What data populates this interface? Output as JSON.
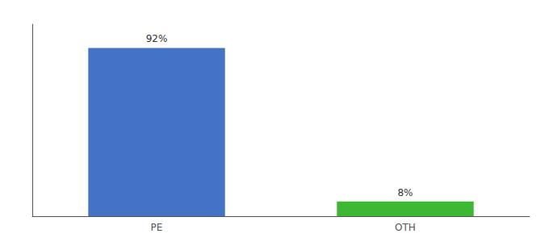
{
  "chart_data": {
    "type": "bar",
    "categories": [
      "PE",
      "OTH"
    ],
    "values": [
      92,
      8
    ],
    "value_labels": [
      "92%",
      "8%"
    ],
    "colors": [
      "#4472c4",
      "#3cb832"
    ],
    "ylim": [
      0,
      105
    ],
    "yticks": [],
    "data_labels": true,
    "tick_labels": "x",
    "grid": false
  }
}
